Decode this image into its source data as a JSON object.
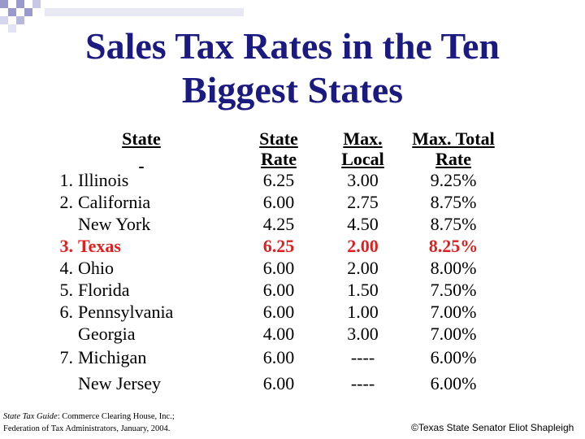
{
  "title_line1": "Sales Tax Rates in the Ten",
  "title_line2": "Biggest States",
  "headers": {
    "state": "State",
    "rate_line1": "State",
    "rate_line2": "Rate",
    "local_line1": "Max.",
    "local_line2": "Local",
    "total_line1": "Max. Total",
    "total_line2": "Rate"
  },
  "rows": [
    {
      "rank": "1.",
      "state": "Illinois",
      "rate": "6.25",
      "local": "3.00",
      "total": "9.25%"
    },
    {
      "rank": "2.",
      "state": "California",
      "rate": "6.00",
      "local": "2.75",
      "total": "8.75%"
    },
    {
      "rank": "",
      "state": "New York",
      "rate": "4.25",
      "local": "4.50",
      "total": "8.75%"
    },
    {
      "rank": "3.",
      "state": "Texas",
      "rate": "6.25",
      "local": "2.00",
      "total": "8.25%"
    },
    {
      "rank": "4.",
      "state": "Ohio",
      "rate": "6.00",
      "local": "2.00",
      "total": "8.00%"
    },
    {
      "rank": "5.",
      "state": "Florida",
      "rate": "6.00",
      "local": "1.50",
      "total": "7.50%"
    },
    {
      "rank": "6.",
      "state": "Pennsylvania",
      "rate": "6.00",
      "local": "1.00",
      "total": "7.00%"
    },
    {
      "rank": "",
      "state": "Georgia",
      "rate": "4.00",
      "local": "3.00",
      "total": "7.00%"
    },
    {
      "rank": "7.",
      "state": "Michigan",
      "rate": "6.00",
      "local": "----",
      "total": "6.00%"
    },
    {
      "rank": "",
      "state": "New Jersey",
      "rate": "6.00",
      "local": "----",
      "total": "6.00%"
    }
  ],
  "source": {
    "guide_title": "State Tax Guide",
    "line1_rest": ": Commerce Clearing House, Inc.;",
    "line2": "Federation of Tax Administrators, January, 2004."
  },
  "copyright": "©Texas State Senator Eliot Shapleigh",
  "colors": {
    "title": "#1a1a80",
    "highlight": "#e01f1f",
    "deco_square": "#9999cc"
  }
}
